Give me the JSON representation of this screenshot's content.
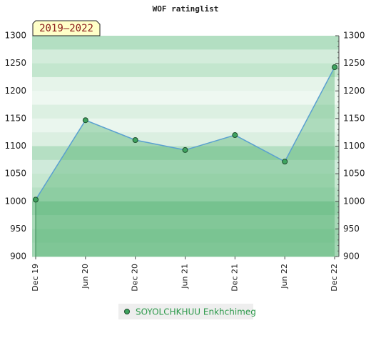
{
  "chart_data": {
    "type": "line",
    "title": "WOF ratinglist",
    "annotation": "2019–2022",
    "categories": [
      "Dec 19",
      "Jun 20",
      "Dec 20",
      "Jun 21",
      "Dec 21",
      "Jun 22",
      "Dec 22"
    ],
    "series": [
      {
        "name": "SOYOLCHKHUU Enkhchimeg",
        "color": "#5aa0d0",
        "marker_color": "#3fa35f",
        "values": [
          1003,
          1147,
          1111,
          1093,
          1120,
          1072,
          1243
        ]
      }
    ],
    "ylim": [
      900,
      1300
    ],
    "yticks": [
      900,
      950,
      1000,
      1050,
      1100,
      1150,
      1200,
      1250,
      1300
    ]
  }
}
